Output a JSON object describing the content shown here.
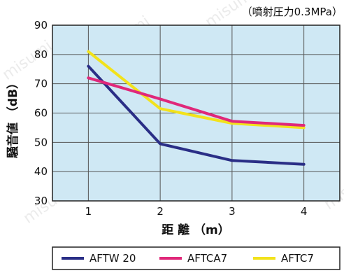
{
  "chart_data": {
    "type": "line",
    "subtitle": "（噴射圧力0.3MPa）",
    "xlabel": "距 離 （m）",
    "ylabel": "騒音値 （dB）",
    "x": [
      1,
      2,
      3,
      4
    ],
    "xticks": [
      "1",
      "2",
      "3",
      "4"
    ],
    "xlim": [
      0.5,
      4.5
    ],
    "ylim": [
      30,
      90
    ],
    "yticks": [
      "30",
      "40",
      "50",
      "60",
      "70",
      "80",
      "90"
    ],
    "grid": true,
    "legend_position": "bottom",
    "series": [
      {
        "name": "AFTW 20",
        "values": [
          76,
          49.5,
          43.8,
          42.5
        ],
        "color": "#2a2e86"
      },
      {
        "name": "AFTCA7",
        "values": [
          72,
          64.8,
          57.2,
          55.8
        ],
        "color": "#e0287a"
      },
      {
        "name": "AFTC7",
        "values": [
          81,
          61.5,
          56.5,
          55
        ],
        "color": "#f2e21c"
      }
    ],
    "plot_background": "#cfe8f4",
    "watermark": "misumi"
  }
}
